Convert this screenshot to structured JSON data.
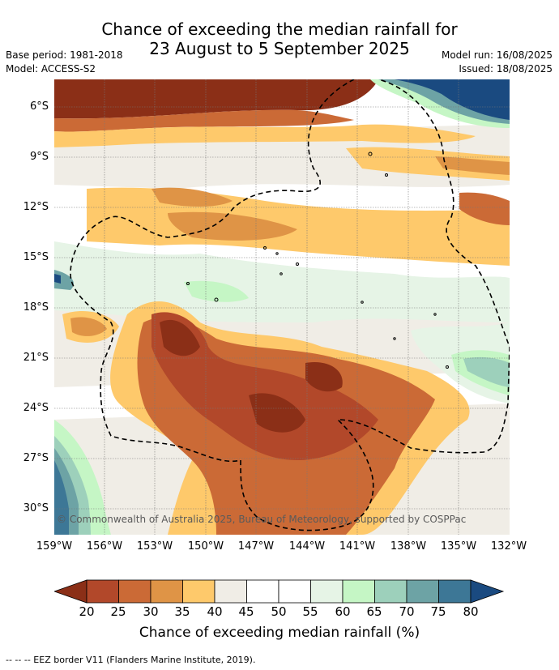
{
  "title_line1": "Chance of exceeding the median rainfall for",
  "title_line2": "23 August to 5 September 2025",
  "base_period": "Base period: 1981-2018",
  "model": "Model: ACCESS-S2",
  "model_run": "Model run: 16/08/2025",
  "issued": "Issued: 18/08/2025",
  "lat_labels": [
    "6°S",
    "9°S",
    "12°S",
    "15°S",
    "18°S",
    "21°S",
    "24°S",
    "27°S",
    "30°S"
  ],
  "lon_labels": [
    "159°W",
    "156°W",
    "153°W",
    "150°W",
    "147°W",
    "144°W",
    "141°W",
    "138°W",
    "135°W",
    "132°W"
  ],
  "copyright": "© Commonwealth of Australia 2025, Bureau of Meteorology, supported by COSPPac",
  "colorbar": {
    "ticks": [
      "20",
      "25",
      "30",
      "35",
      "40",
      "45",
      "50",
      "55",
      "60",
      "65",
      "70",
      "75",
      "80"
    ],
    "colors": [
      "#8b2f17",
      "#b2482a",
      "#cb6a36",
      "#df9446",
      "#fec96b",
      "#f0ede6",
      "#ffffff",
      "#ffffff",
      "#e6f4e6",
      "#c5f6c5",
      "#9dd0bb",
      "#6da3a5",
      "#3d7796",
      "#1a4a80"
    ],
    "label": "Chance of exceeding median rainfall (%)"
  },
  "footnote": "--  --  -- EEZ border V11 (Flanders Marine Institute, 2019)."
}
